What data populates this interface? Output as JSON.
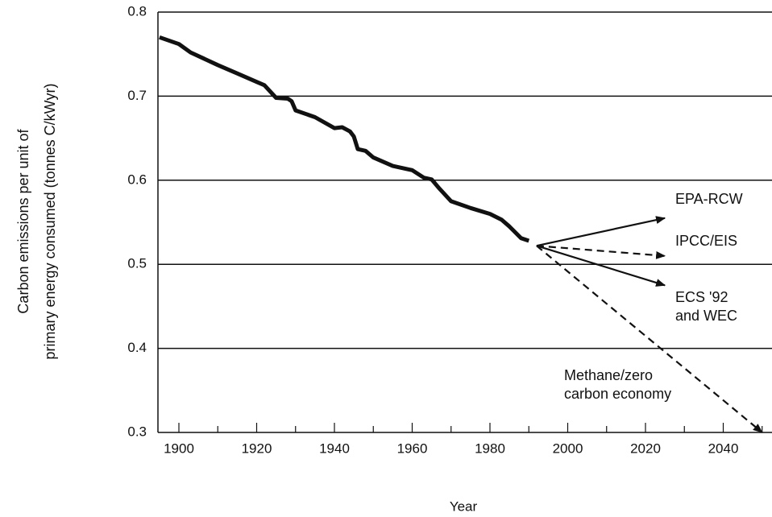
{
  "chart_data": {
    "type": "line",
    "x_label": "Year",
    "y_label": [
      "Carbon emissions per unit of",
      "primary energy consumed (tonnes C/kWyr)"
    ],
    "xlim": [
      1895,
      2052
    ],
    "ylim": [
      0.3,
      0.8
    ],
    "xticks": [
      1900,
      1920,
      1940,
      1960,
      1980,
      2000,
      2020,
      2040
    ],
    "xminorticks": [
      1910,
      1930,
      1950,
      1970,
      1990,
      2010,
      2030,
      2050
    ],
    "yticks": [
      0.3,
      0.4,
      0.5,
      0.6,
      0.7,
      0.8
    ],
    "grid": true,
    "series": [
      {
        "color": "#111111",
        "dash": false,
        "arrow": false,
        "x": [
          1895,
          1900,
          1903,
          1910,
          1915,
          1920,
          1922,
          1925,
          1928,
          1929,
          1930,
          1935,
          1940,
          1942,
          1944,
          1945,
          1946,
          1948,
          1950,
          1955,
          1960,
          1963,
          1965,
          1967,
          1970,
          1975,
          1980,
          1983,
          1985,
          1988,
          1990
        ],
        "values": [
          0.77,
          0.762,
          0.752,
          0.737,
          0.727,
          0.717,
          0.713,
          0.698,
          0.697,
          0.694,
          0.683,
          0.675,
          0.662,
          0.663,
          0.658,
          0.652,
          0.637,
          0.635,
          0.627,
          0.617,
          0.612,
          0.603,
          0.601,
          0.59,
          0.575,
          0.567,
          0.56,
          0.553,
          0.545,
          0.531,
          0.528
        ]
      },
      {
        "name": "EPA-RCW",
        "color": "#111111",
        "dash": false,
        "arrow": true,
        "x": [
          1992,
          2025
        ],
        "values": [
          0.522,
          0.555
        ]
      },
      {
        "name": "IPCC/EIS",
        "color": "#111111",
        "dash": true,
        "arrow": true,
        "x": [
          1992,
          2025
        ],
        "values": [
          0.522,
          0.51
        ]
      },
      {
        "name": "ECS '92\nand WEC",
        "color": "#111111",
        "dash": false,
        "arrow": true,
        "x": [
          1992,
          2025
        ],
        "values": [
          0.522,
          0.475
        ]
      },
      {
        "name": "Methane/zero\ncarbon economy",
        "color": "#111111",
        "dash": true,
        "arrow": true,
        "x": [
          1992,
          2050
        ],
        "values": [
          0.522,
          0.3
        ]
      }
    ]
  }
}
